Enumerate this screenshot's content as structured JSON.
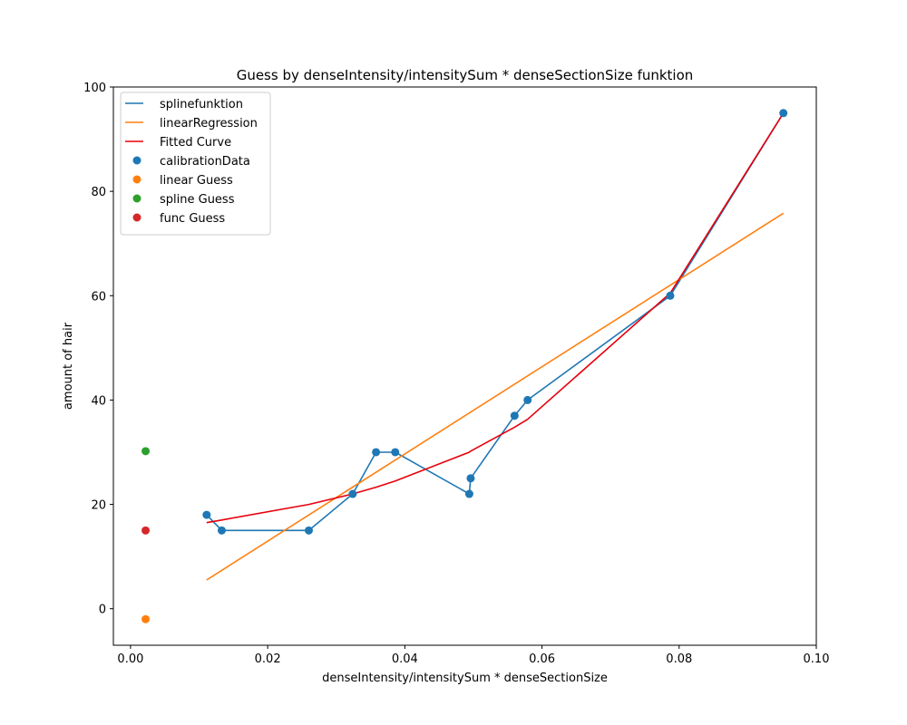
{
  "chart_data": {
    "type": "line",
    "title": "Guess by denseIntensity/intensitySum * denseSectionSize funktion",
    "xlabel": "denseIntensity/intensitySum * denseSectionSize",
    "ylabel": "amount of hair",
    "xlim": [
      -0.0025,
      0.1
    ],
    "ylim": [
      -7,
      100
    ],
    "xticks": [
      0.0,
      0.02,
      0.04,
      0.06,
      0.08,
      0.1
    ],
    "xtick_labels": [
      "0.00",
      "0.02",
      "0.04",
      "0.06",
      "0.08",
      "0.10"
    ],
    "yticks": [
      0,
      20,
      40,
      60,
      80,
      100
    ],
    "ytick_labels": [
      "0",
      "20",
      "40",
      "60",
      "80",
      "100"
    ],
    "grid": false,
    "legend_position": "top-left",
    "series": [
      {
        "name": "splinefunktion",
        "kind": "line",
        "color": "#1f77b4",
        "x": [
          0.0111,
          0.0133,
          0.026,
          0.0324,
          0.0358,
          0.0386,
          0.0494,
          0.0496,
          0.056,
          0.0579,
          0.0787,
          0.0952
        ],
        "y": [
          18,
          15,
          15,
          22,
          30,
          30,
          22,
          25,
          37,
          40,
          60,
          95
        ]
      },
      {
        "name": "linearRegression",
        "kind": "line",
        "color": "#ff7f0e",
        "x": [
          0.0111,
          0.0952
        ],
        "y": [
          5.5,
          75.8
        ]
      },
      {
        "name": "Fitted Curve",
        "kind": "line",
        "color": "#e8000b",
        "x": [
          0.0111,
          0.0133,
          0.026,
          0.0324,
          0.0358,
          0.0386,
          0.0494,
          0.0496,
          0.056,
          0.0579,
          0.0787,
          0.0952
        ],
        "y": [
          16.5,
          17.0,
          20.0,
          22.0,
          23.3,
          24.5,
          30.0,
          30.2,
          34.8,
          36.3,
          60.5,
          95.0
        ]
      },
      {
        "name": "calibrationData",
        "kind": "scatter",
        "color": "#1f77b4",
        "x": [
          0.0111,
          0.0133,
          0.026,
          0.0324,
          0.0358,
          0.0386,
          0.0494,
          0.0496,
          0.056,
          0.0579,
          0.0787,
          0.0952
        ],
        "y": [
          18,
          15,
          15,
          22,
          30,
          30,
          22,
          25,
          37,
          40,
          60,
          95
        ]
      },
      {
        "name": "linear Guess",
        "kind": "scatter",
        "color": "#ff7f0e",
        "x": [
          0.0022
        ],
        "y": [
          -2
        ]
      },
      {
        "name": "spline Guess",
        "kind": "scatter",
        "color": "#2ca02c",
        "x": [
          0.0022
        ],
        "y": [
          30.2
        ]
      },
      {
        "name": "func Guess",
        "kind": "scatter",
        "color": "#d62728",
        "x": [
          0.0022
        ],
        "y": [
          15
        ]
      }
    ]
  }
}
